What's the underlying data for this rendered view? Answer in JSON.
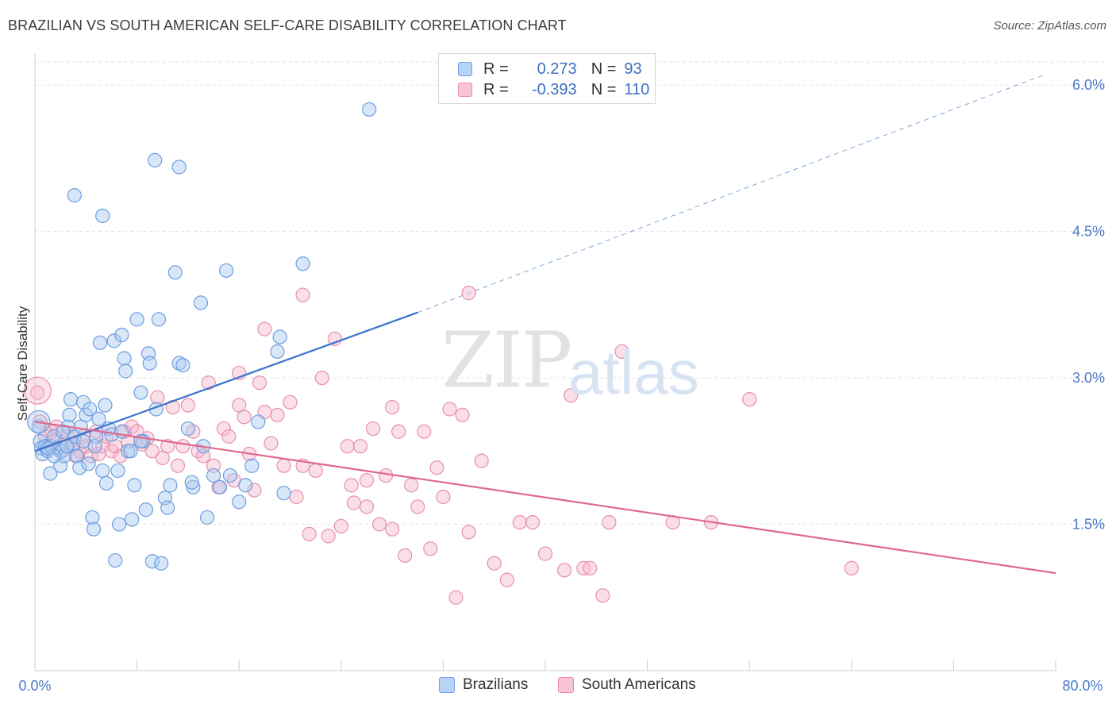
{
  "title": "BRAZILIAN VS SOUTH AMERICAN SELF-CARE DISABILITY CORRELATION CHART",
  "source": "Source: ZipAtlas.com",
  "watermark": {
    "zip": "ZIP",
    "atlas": "atlas"
  },
  "legend": {
    "r_label": "R =",
    "n_label": "N =",
    "rows": [
      {
        "r": "0.273",
        "n": "93",
        "fill": "#b7d3f5",
        "stroke": "#6d9de0"
      },
      {
        "r": "-0.393",
        "n": "110",
        "fill": "#f9c5d5",
        "stroke": "#e88aa8"
      }
    ]
  },
  "bottom_legend": {
    "brazilians": "Brazilians",
    "south_americans": "South Americans"
  },
  "colors": {
    "blue": "#3a73cc",
    "blue_fill": "#a9c9f0",
    "pink": "#e0688f",
    "pink_fill": "#f7b9cc",
    "axis_text": "#4a78c8",
    "grid": "#e3e3e3"
  },
  "chart_data": {
    "type": "scatter",
    "title": "BRAZILIAN VS SOUTH AMERICAN SELF-CARE DISABILITY CORRELATION CHART",
    "xlabel": "",
    "ylabel": "Self-Care Disability",
    "xlim": [
      0,
      80
    ],
    "ylim": [
      0,
      6.4
    ],
    "x_tick_labels": [
      "0.0%",
      "80.0%"
    ],
    "y_ticks": [
      1.5,
      3.0,
      4.5,
      6.0
    ],
    "y_tick_labels": [
      "1.5%",
      "3.0%",
      "4.5%",
      "6.0%"
    ],
    "grid": true,
    "legend_position": "top-center",
    "series": [
      {
        "name": "Brazilians",
        "color": "#3a73cc",
        "r": 0.273,
        "n": 93,
        "trend": {
          "x": [
            0,
            30
          ],
          "y": [
            2.25,
            3.67
          ],
          "extended_to": [
            79,
            6.1
          ]
        },
        "points": [
          [
            0.3,
            2.5
          ],
          [
            0.4,
            2.35
          ],
          [
            0.5,
            2.28
          ],
          [
            0.6,
            2.22
          ],
          [
            0.8,
            2.3
          ],
          [
            1.0,
            2.25
          ],
          [
            1.2,
            2.02
          ],
          [
            1.3,
            2.3
          ],
          [
            1.5,
            2.4
          ],
          [
            1.8,
            2.28
          ],
          [
            2.0,
            2.1
          ],
          [
            2.1,
            2.25
          ],
          [
            2.3,
            2.2
          ],
          [
            2.5,
            2.3
          ],
          [
            2.6,
            2.5
          ],
          [
            2.7,
            2.62
          ],
          [
            2.8,
            2.78
          ],
          [
            3.0,
            2.32
          ],
          [
            3.1,
            2.4
          ],
          [
            3.3,
            2.2
          ],
          [
            3.5,
            2.08
          ],
          [
            3.6,
            2.5
          ],
          [
            3.8,
            2.75
          ],
          [
            4.0,
            2.62
          ],
          [
            4.2,
            2.12
          ],
          [
            4.3,
            2.68
          ],
          [
            4.5,
            1.57
          ],
          [
            4.6,
            1.45
          ],
          [
            4.8,
            2.4
          ],
          [
            5.0,
            2.58
          ],
          [
            5.1,
            3.36
          ],
          [
            5.3,
            2.05
          ],
          [
            5.5,
            2.72
          ],
          [
            5.6,
            1.92
          ],
          [
            5.8,
            2.48
          ],
          [
            6.0,
            2.42
          ],
          [
            6.2,
            3.38
          ],
          [
            6.3,
            1.13
          ],
          [
            6.5,
            2.05
          ],
          [
            6.6,
            1.5
          ],
          [
            6.8,
            3.44
          ],
          [
            7.0,
            3.2
          ],
          [
            7.1,
            3.07
          ],
          [
            7.3,
            2.25
          ],
          [
            7.5,
            2.25
          ],
          [
            7.6,
            1.55
          ],
          [
            7.8,
            1.9
          ],
          [
            8.0,
            3.6
          ],
          [
            8.3,
            2.85
          ],
          [
            8.5,
            2.35
          ],
          [
            8.7,
            1.65
          ],
          [
            8.9,
            3.25
          ],
          [
            9.0,
            3.15
          ],
          [
            9.2,
            1.12
          ],
          [
            9.5,
            2.68
          ],
          [
            9.7,
            3.6
          ],
          [
            9.9,
            1.1
          ],
          [
            10.2,
            1.77
          ],
          [
            10.4,
            1.67
          ],
          [
            10.6,
            1.9
          ],
          [
            11.0,
            4.08
          ],
          [
            11.3,
            3.15
          ],
          [
            11.6,
            3.13
          ],
          [
            12.0,
            2.48
          ],
          [
            12.4,
            1.88
          ],
          [
            13.0,
            3.77
          ],
          [
            13.5,
            1.57
          ],
          [
            14.0,
            2.0
          ],
          [
            14.5,
            1.88
          ],
          [
            15.0,
            4.1
          ],
          [
            15.3,
            2.0
          ],
          [
            16.0,
            1.73
          ],
          [
            16.5,
            1.9
          ],
          [
            17.0,
            2.1
          ],
          [
            17.5,
            2.55
          ],
          [
            19.0,
            3.27
          ],
          [
            19.2,
            3.42
          ],
          [
            19.5,
            1.82
          ],
          [
            21.0,
            4.17
          ],
          [
            3.1,
            4.87
          ],
          [
            5.3,
            4.66
          ],
          [
            9.4,
            5.23
          ],
          [
            11.3,
            5.16
          ],
          [
            26.2,
            5.75
          ],
          [
            8.3,
            2.35
          ],
          [
            13.2,
            2.3
          ],
          [
            6.8,
            2.45
          ],
          [
            3.8,
            2.35
          ],
          [
            1.5,
            2.2
          ],
          [
            2.2,
            2.45
          ],
          [
            4.7,
            2.3
          ],
          [
            2.5,
            2.3
          ],
          [
            1.0,
            2.28
          ],
          [
            12.3,
            1.93
          ]
        ]
      },
      {
        "name": "South Americans",
        "color": "#e0688f",
        "r": -0.393,
        "n": 110,
        "trend": {
          "x": [
            0,
            80
          ],
          "y": [
            2.55,
            1.0
          ]
        },
        "points": [
          [
            0.2,
            2.85
          ],
          [
            0.4,
            2.55
          ],
          [
            0.8,
            2.4
          ],
          [
            1.0,
            2.3
          ],
          [
            1.3,
            2.45
          ],
          [
            1.5,
            2.35
          ],
          [
            1.7,
            2.5
          ],
          [
            2.0,
            2.25
          ],
          [
            2.3,
            2.35
          ],
          [
            2.6,
            2.4
          ],
          [
            2.9,
            2.3
          ],
          [
            3.2,
            2.2
          ],
          [
            3.5,
            2.25
          ],
          [
            3.8,
            2.4
          ],
          [
            4.0,
            2.3
          ],
          [
            4.4,
            2.2
          ],
          [
            4.8,
            2.45
          ],
          [
            5.0,
            2.22
          ],
          [
            5.3,
            2.3
          ],
          [
            5.6,
            2.4
          ],
          [
            6.0,
            2.25
          ],
          [
            6.3,
            2.3
          ],
          [
            6.7,
            2.2
          ],
          [
            7.0,
            2.45
          ],
          [
            7.3,
            2.35
          ],
          [
            7.6,
            2.5
          ],
          [
            8.0,
            2.45
          ],
          [
            8.4,
            2.32
          ],
          [
            8.8,
            2.38
          ],
          [
            9.2,
            2.25
          ],
          [
            9.6,
            2.8
          ],
          [
            10.0,
            2.18
          ],
          [
            10.4,
            2.3
          ],
          [
            10.8,
            2.7
          ],
          [
            11.2,
            2.1
          ],
          [
            11.6,
            2.3
          ],
          [
            12.0,
            2.72
          ],
          [
            12.4,
            2.45
          ],
          [
            12.8,
            2.25
          ],
          [
            13.2,
            2.2
          ],
          [
            13.6,
            2.95
          ],
          [
            14.0,
            2.1
          ],
          [
            14.4,
            1.88
          ],
          [
            14.8,
            2.48
          ],
          [
            15.2,
            2.4
          ],
          [
            15.6,
            1.95
          ],
          [
            16.0,
            2.72
          ],
          [
            16.4,
            2.6
          ],
          [
            16.8,
            2.22
          ],
          [
            17.2,
            1.85
          ],
          [
            17.6,
            2.95
          ],
          [
            18.0,
            2.65
          ],
          [
            18.5,
            2.33
          ],
          [
            19.0,
            2.62
          ],
          [
            19.5,
            2.1
          ],
          [
            20.0,
            2.75
          ],
          [
            20.5,
            1.78
          ],
          [
            21.0,
            2.1
          ],
          [
            21.5,
            1.4
          ],
          [
            22.0,
            2.05
          ],
          [
            22.5,
            3.0
          ],
          [
            23.0,
            1.38
          ],
          [
            23.5,
            3.4
          ],
          [
            24.0,
            1.48
          ],
          [
            24.5,
            2.3
          ],
          [
            25.0,
            1.72
          ],
          [
            25.5,
            2.3
          ],
          [
            26.0,
            1.68
          ],
          [
            26.5,
            2.48
          ],
          [
            27.0,
            1.5
          ],
          [
            27.5,
            2.0
          ],
          [
            28.0,
            1.45
          ],
          [
            28.5,
            2.45
          ],
          [
            29.0,
            1.18
          ],
          [
            29.5,
            1.9
          ],
          [
            30.0,
            1.68
          ],
          [
            30.5,
            2.45
          ],
          [
            31.0,
            1.25
          ],
          [
            31.5,
            2.08
          ],
          [
            32.0,
            1.78
          ],
          [
            32.5,
            2.68
          ],
          [
            33.0,
            0.75
          ],
          [
            33.5,
            2.62
          ],
          [
            34.0,
            1.42
          ],
          [
            35.0,
            2.15
          ],
          [
            36.0,
            1.1
          ],
          [
            37.0,
            0.93
          ],
          [
            38.0,
            1.52
          ],
          [
            39.0,
            1.52
          ],
          [
            40.0,
            1.2
          ],
          [
            41.5,
            1.03
          ],
          [
            42.0,
            2.82
          ],
          [
            43.0,
            1.05
          ],
          [
            43.5,
            1.05
          ],
          [
            44.5,
            0.77
          ],
          [
            45.0,
            1.52
          ],
          [
            46.0,
            3.27
          ],
          [
            50.0,
            1.52
          ],
          [
            53.0,
            1.52
          ],
          [
            56.0,
            2.78
          ],
          [
            64.0,
            1.05
          ],
          [
            28.0,
            2.7
          ],
          [
            21.0,
            3.85
          ],
          [
            34.0,
            3.87
          ],
          [
            26.0,
            1.95
          ],
          [
            18.0,
            3.5
          ],
          [
            16.0,
            3.05
          ],
          [
            24.8,
            1.9
          ]
        ]
      }
    ]
  }
}
